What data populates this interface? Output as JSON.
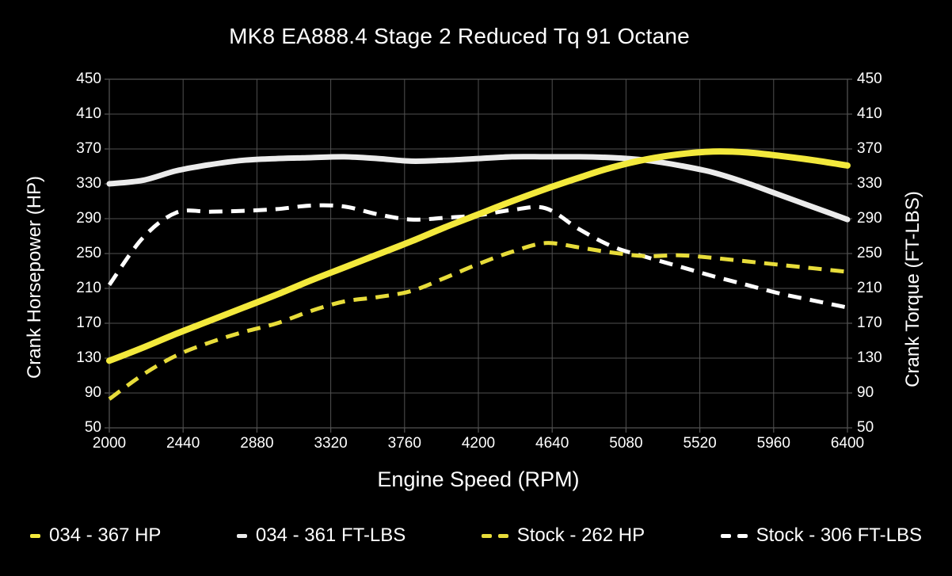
{
  "app": {
    "background_color": "#000000",
    "text_color": "#ffffff"
  },
  "chart_data": {
    "type": "line",
    "title": "MK8 EA888.4 Stage 2 Reduced Tq 91 Octane",
    "xlabel": "Engine Speed (RPM)",
    "ylabel_left": "Crank Horsepower (HP)",
    "ylabel_right": "Crank Torque (FT-LBS)",
    "xlim": [
      2000,
      6400
    ],
    "ylim": [
      50,
      450
    ],
    "x_ticks": [
      2000,
      2440,
      2880,
      3320,
      3760,
      4200,
      4640,
      5080,
      5520,
      5960,
      6400
    ],
    "y_ticks_left": [
      450,
      410,
      370,
      330,
      290,
      250,
      210,
      170,
      130,
      90,
      50
    ],
    "y_ticks_right": [
      450,
      410,
      370,
      330,
      290,
      250,
      210,
      170,
      130,
      90,
      50
    ],
    "grid": true,
    "grid_color": "#515151",
    "legend_position": "bottom",
    "x": [
      2000,
      2200,
      2400,
      2600,
      2800,
      3000,
      3200,
      3400,
      3600,
      3800,
      4000,
      4200,
      4400,
      4600,
      4800,
      5000,
      5200,
      5400,
      5600,
      5800,
      6000,
      6200,
      6400
    ],
    "series": [
      {
        "name": "034 HP",
        "legend_label": "034 - 367 HP",
        "peak_value": 367,
        "unit": "HP",
        "color": "#f3e93c",
        "style": "solid",
        "width": 8,
        "values": [
          127,
          142,
          158,
          173,
          188,
          203,
          219,
          234,
          249,
          264,
          280,
          295,
          310,
          324,
          337,
          349,
          358,
          364,
          367,
          366,
          362,
          357,
          351
        ]
      },
      {
        "name": "034 FT-LBS",
        "legend_label": "034 - 361 FT-LBS",
        "peak_value": 361,
        "unit": "FT-LBS",
        "color": "#ebebeb",
        "style": "solid",
        "width": 7,
        "values": [
          330,
          334,
          345,
          352,
          357,
          359,
          360,
          361,
          359,
          356,
          357,
          359,
          361,
          361,
          361,
          360,
          357,
          351,
          343,
          331,
          317,
          303,
          289
        ]
      },
      {
        "name": "Stock HP",
        "legend_label": "Stock - 262 HP",
        "peak_value": 262,
        "unit": "HP",
        "color": "#e7dc3a",
        "style": "dashed",
        "width": 5,
        "values": [
          83,
          111,
          133,
          148,
          160,
          170,
          184,
          195,
          200,
          207,
          222,
          238,
          252,
          262,
          257,
          251,
          247,
          248,
          245,
          241,
          237,
          233,
          229
        ]
      },
      {
        "name": "Stock FT-LBS",
        "legend_label": "Stock - 306 FT-LBS",
        "peak_value": 306,
        "unit": "FT-LBS",
        "color": "#ffffff",
        "style": "dashed",
        "width": 5,
        "values": [
          214,
          268,
          297,
          298,
          299,
          301,
          305,
          304,
          295,
          289,
          291,
          294,
          300,
          302,
          278,
          258,
          246,
          235,
          224,
          214,
          204,
          196,
          188
        ]
      }
    ]
  }
}
